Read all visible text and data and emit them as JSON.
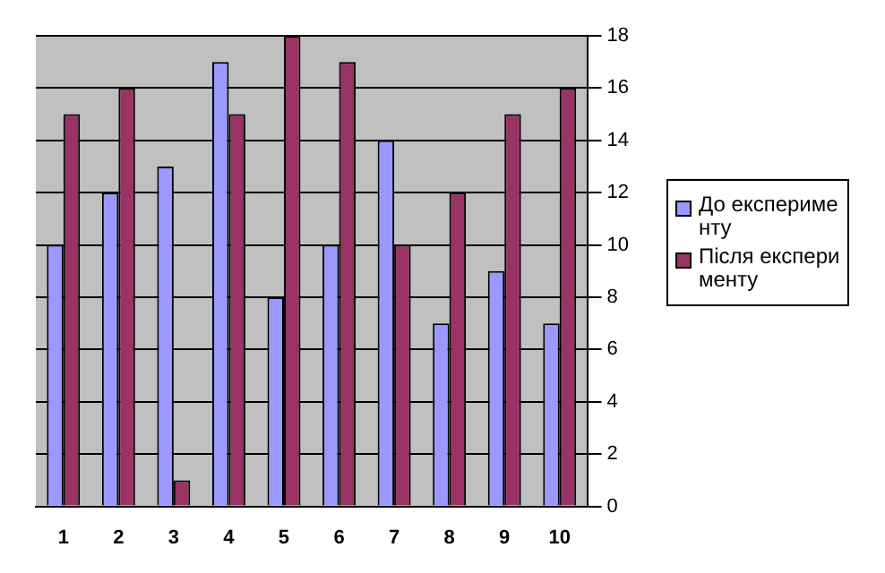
{
  "chart_data": {
    "type": "bar",
    "categories": [
      "1",
      "2",
      "3",
      "4",
      "5",
      "6",
      "7",
      "8",
      "9",
      "10"
    ],
    "series": [
      {
        "name": "До експерименту",
        "color": "#9999ff",
        "values": [
          10,
          12,
          13,
          17,
          8,
          10,
          14,
          7,
          9,
          7
        ]
      },
      {
        "name": "Після експерименту",
        "color": "#993366",
        "values": [
          15,
          16,
          1,
          15,
          18,
          17,
          10,
          12,
          15,
          16
        ]
      }
    ],
    "ylim": [
      0,
      18
    ],
    "yticks": [
      0,
      2,
      4,
      6,
      8,
      10,
      12,
      14,
      16,
      18
    ],
    "grid": "y",
    "legend": "right"
  }
}
